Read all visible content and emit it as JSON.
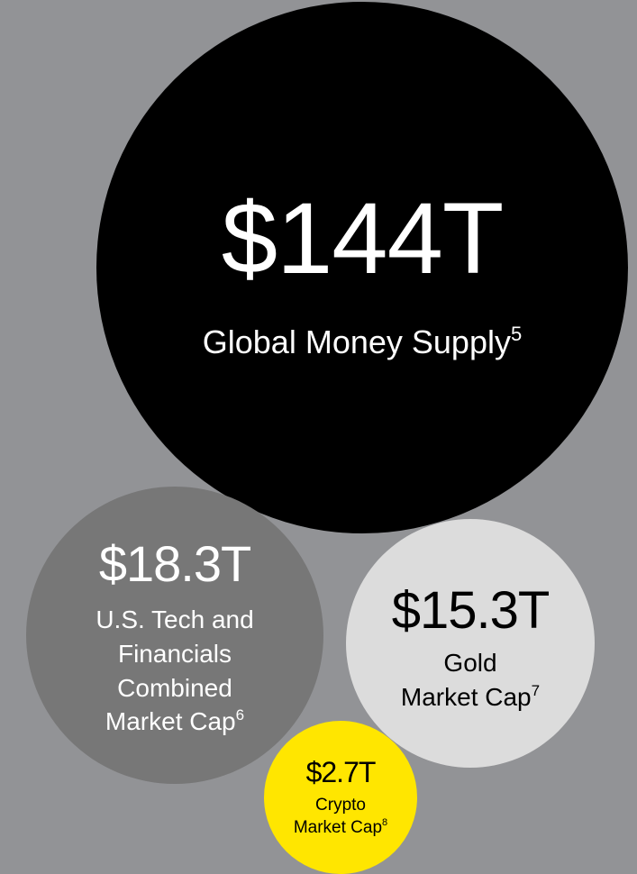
{
  "bubbles": [
    {
      "value": "$144T",
      "lines": [
        "Global Money Supply"
      ],
      "note": "5"
    },
    {
      "value": "$18.3T",
      "lines": [
        "U.S. Tech and",
        "Financials",
        "Combined",
        "Market Cap"
      ],
      "note": "6"
    },
    {
      "value": "$15.3T",
      "lines": [
        "Gold",
        "Market Cap"
      ],
      "note": "7"
    },
    {
      "value": "$2.7T",
      "lines": [
        "Crypto",
        "Market Cap"
      ],
      "note": "8"
    }
  ]
}
